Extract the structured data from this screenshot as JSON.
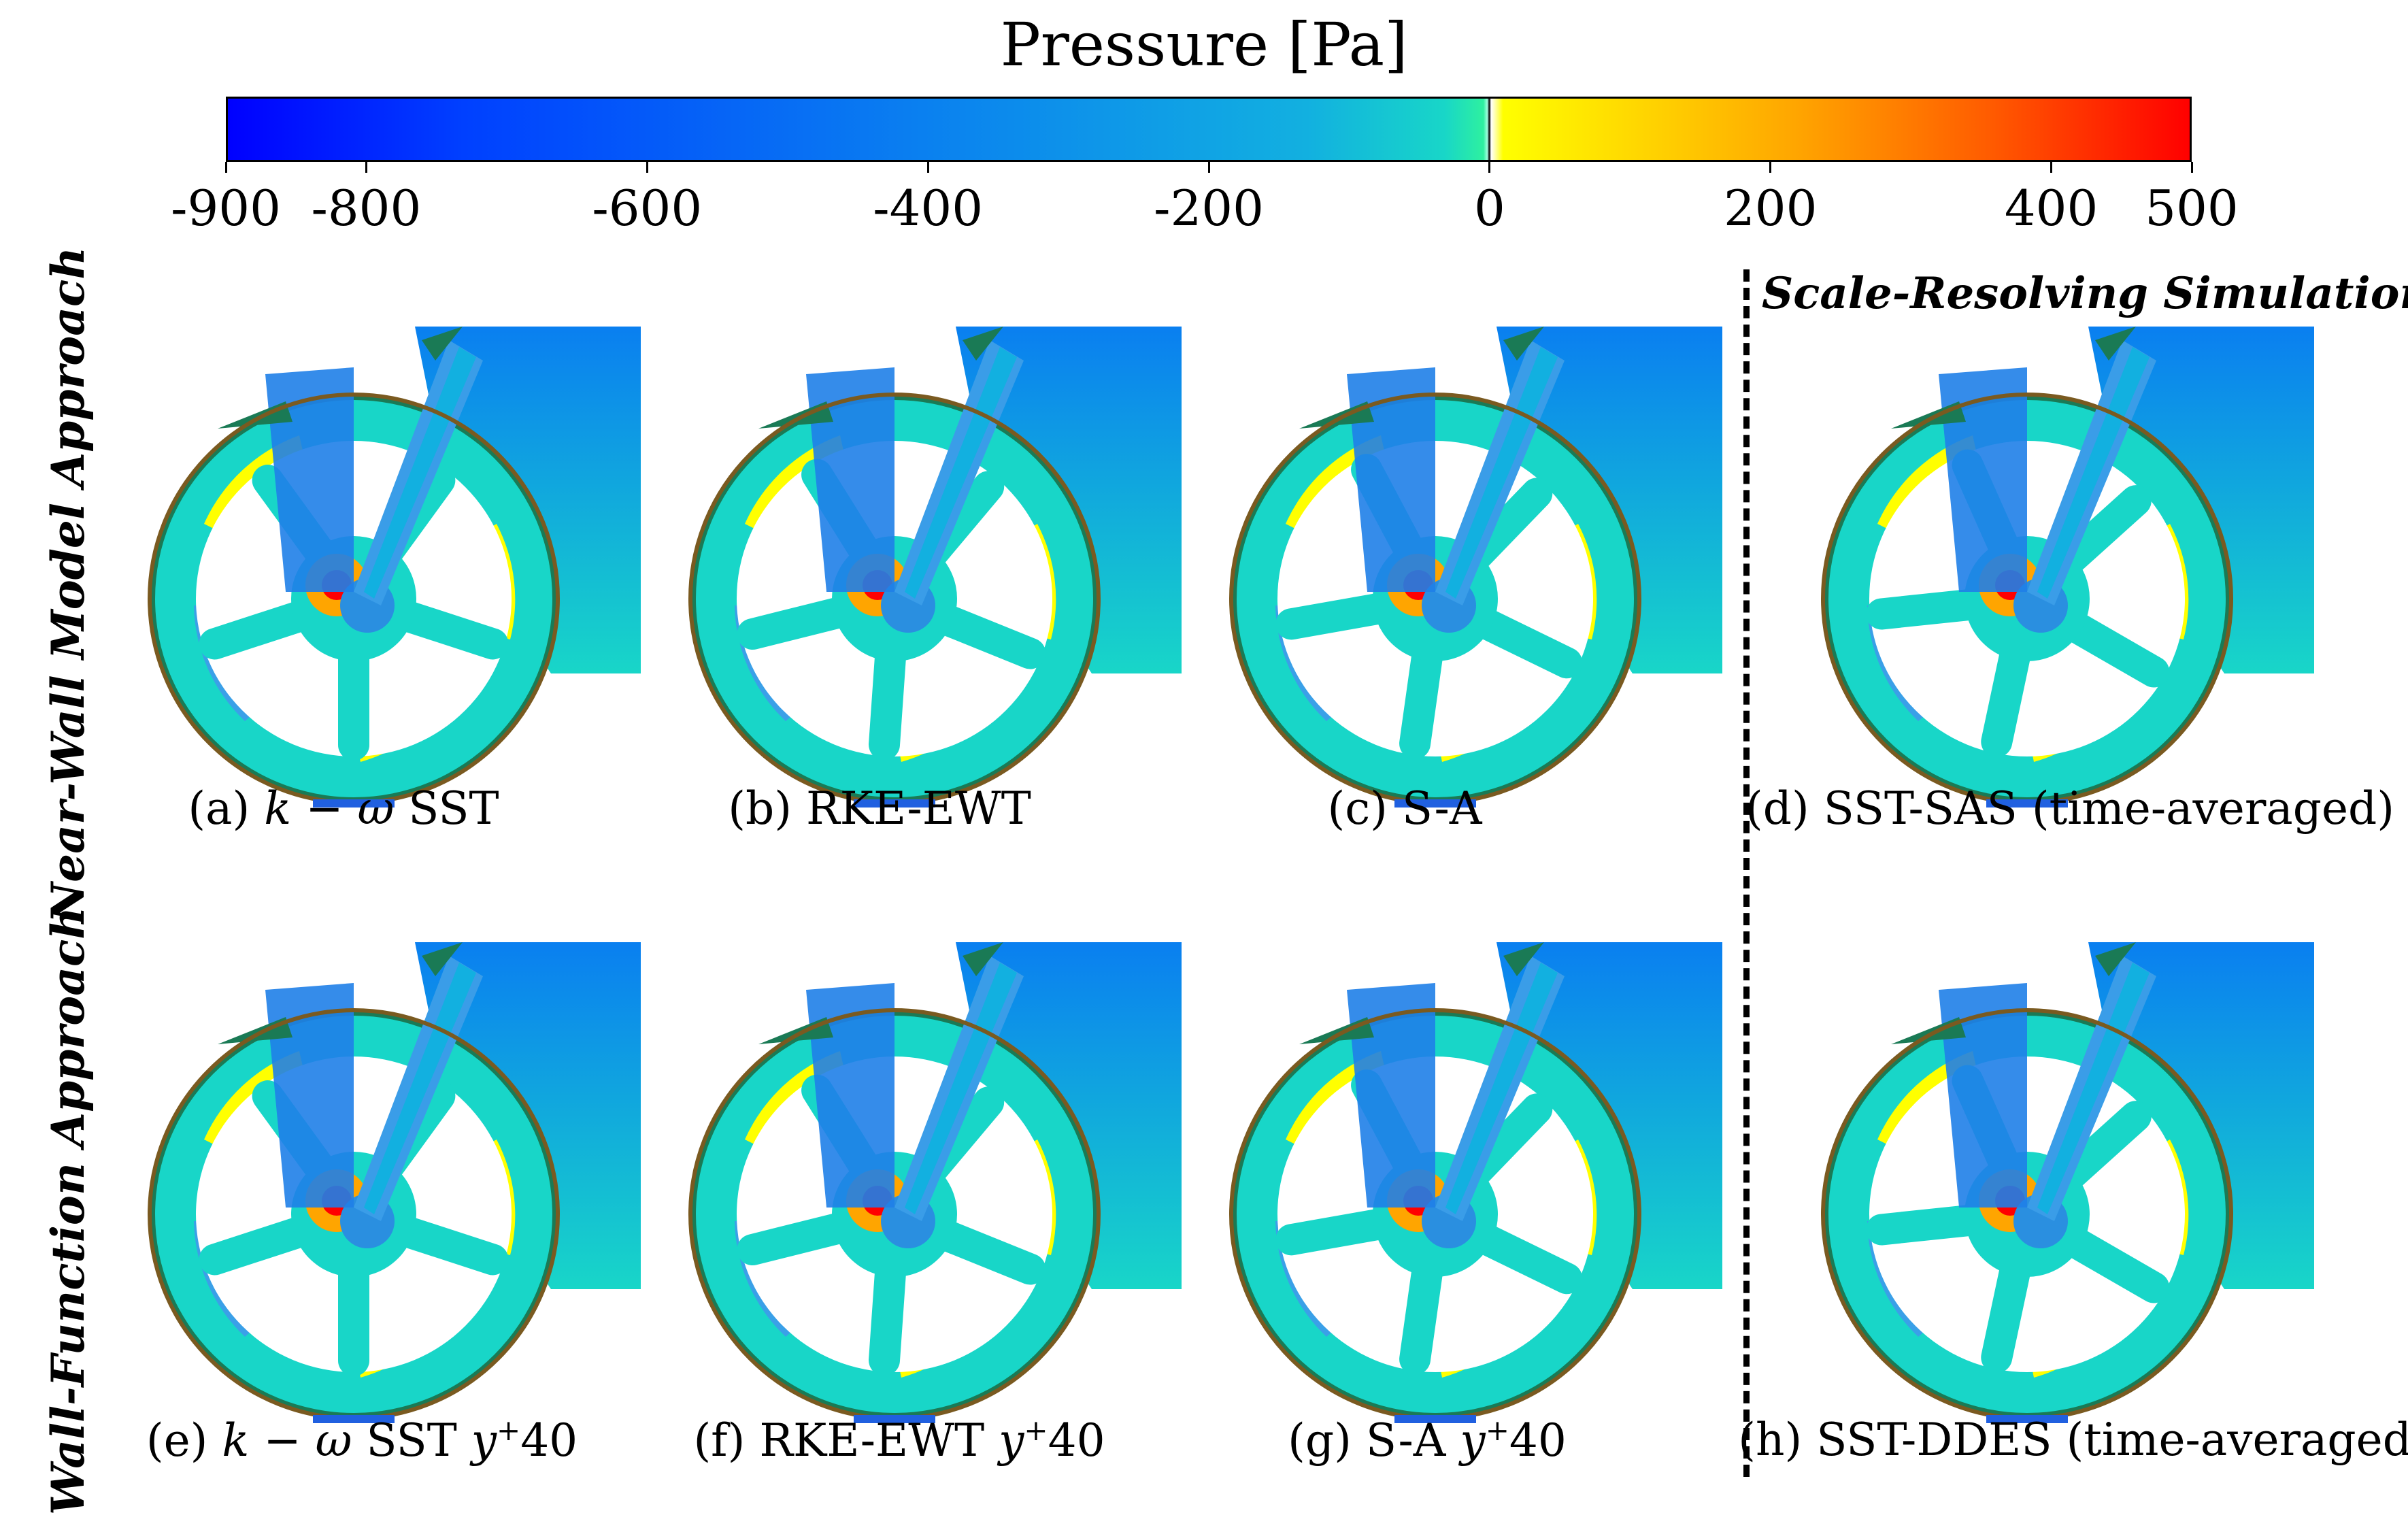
{
  "colorbar": {
    "title": "Pressure [Pa]",
    "min": -900,
    "max": 500,
    "ticks": [
      {
        "value": -900,
        "label": "-900"
      },
      {
        "value": -800,
        "label": "-800"
      },
      {
        "value": -600,
        "label": "-600"
      },
      {
        "value": -400,
        "label": "-400"
      },
      {
        "value": -200,
        "label": "-200"
      },
      {
        "value": 0,
        "label": "0"
      },
      {
        "value": 200,
        "label": "200"
      },
      {
        "value": 400,
        "label": "400"
      },
      {
        "value": 500,
        "label": "500"
      }
    ],
    "colors": {
      "deep_blue": "#0000ff",
      "mid_blue": "#0a7ff0",
      "cyan": "#18d6c8",
      "green": "#2ef0a0",
      "zero_band": "#000000",
      "yellow": "#ffff00",
      "orange": "#ffa500",
      "red": "#ff0000"
    }
  },
  "row_labels": {
    "top": "Near-Wall Model Approach",
    "bottom": "Wall-Function Approach"
  },
  "scale_resolving_label": "Scale-Resolving Simulations",
  "panels": [
    {
      "id": "a",
      "prefix": "(a) ",
      "model": "k − ω",
      "rest": " SST",
      "yplus": false
    },
    {
      "id": "b",
      "prefix": "(b) ",
      "model": "",
      "rest": "RKE-EWT",
      "yplus": false
    },
    {
      "id": "c",
      "prefix": "(c) ",
      "model": "",
      "rest": "S-A",
      "yplus": false
    },
    {
      "id": "d",
      "prefix": "(d) ",
      "model": "",
      "rest": "SST-SAS (time-averaged)",
      "yplus": false
    },
    {
      "id": "e",
      "prefix": "(e) ",
      "model": "k − ω",
      "rest": " SST ",
      "yplus": true
    },
    {
      "id": "f",
      "prefix": "(f) ",
      "model": "",
      "rest": "RKE-EWT ",
      "yplus": true
    },
    {
      "id": "g",
      "prefix": "(g) ",
      "model": "",
      "rest": "S-A ",
      "yplus": true
    },
    {
      "id": "h",
      "prefix": "(h) ",
      "model": "",
      "rest": "SST-DDES (time-averaged)",
      "yplus": false
    }
  ],
  "yplus": {
    "symbol": "y",
    "sup": "+",
    "value": "40"
  }
}
